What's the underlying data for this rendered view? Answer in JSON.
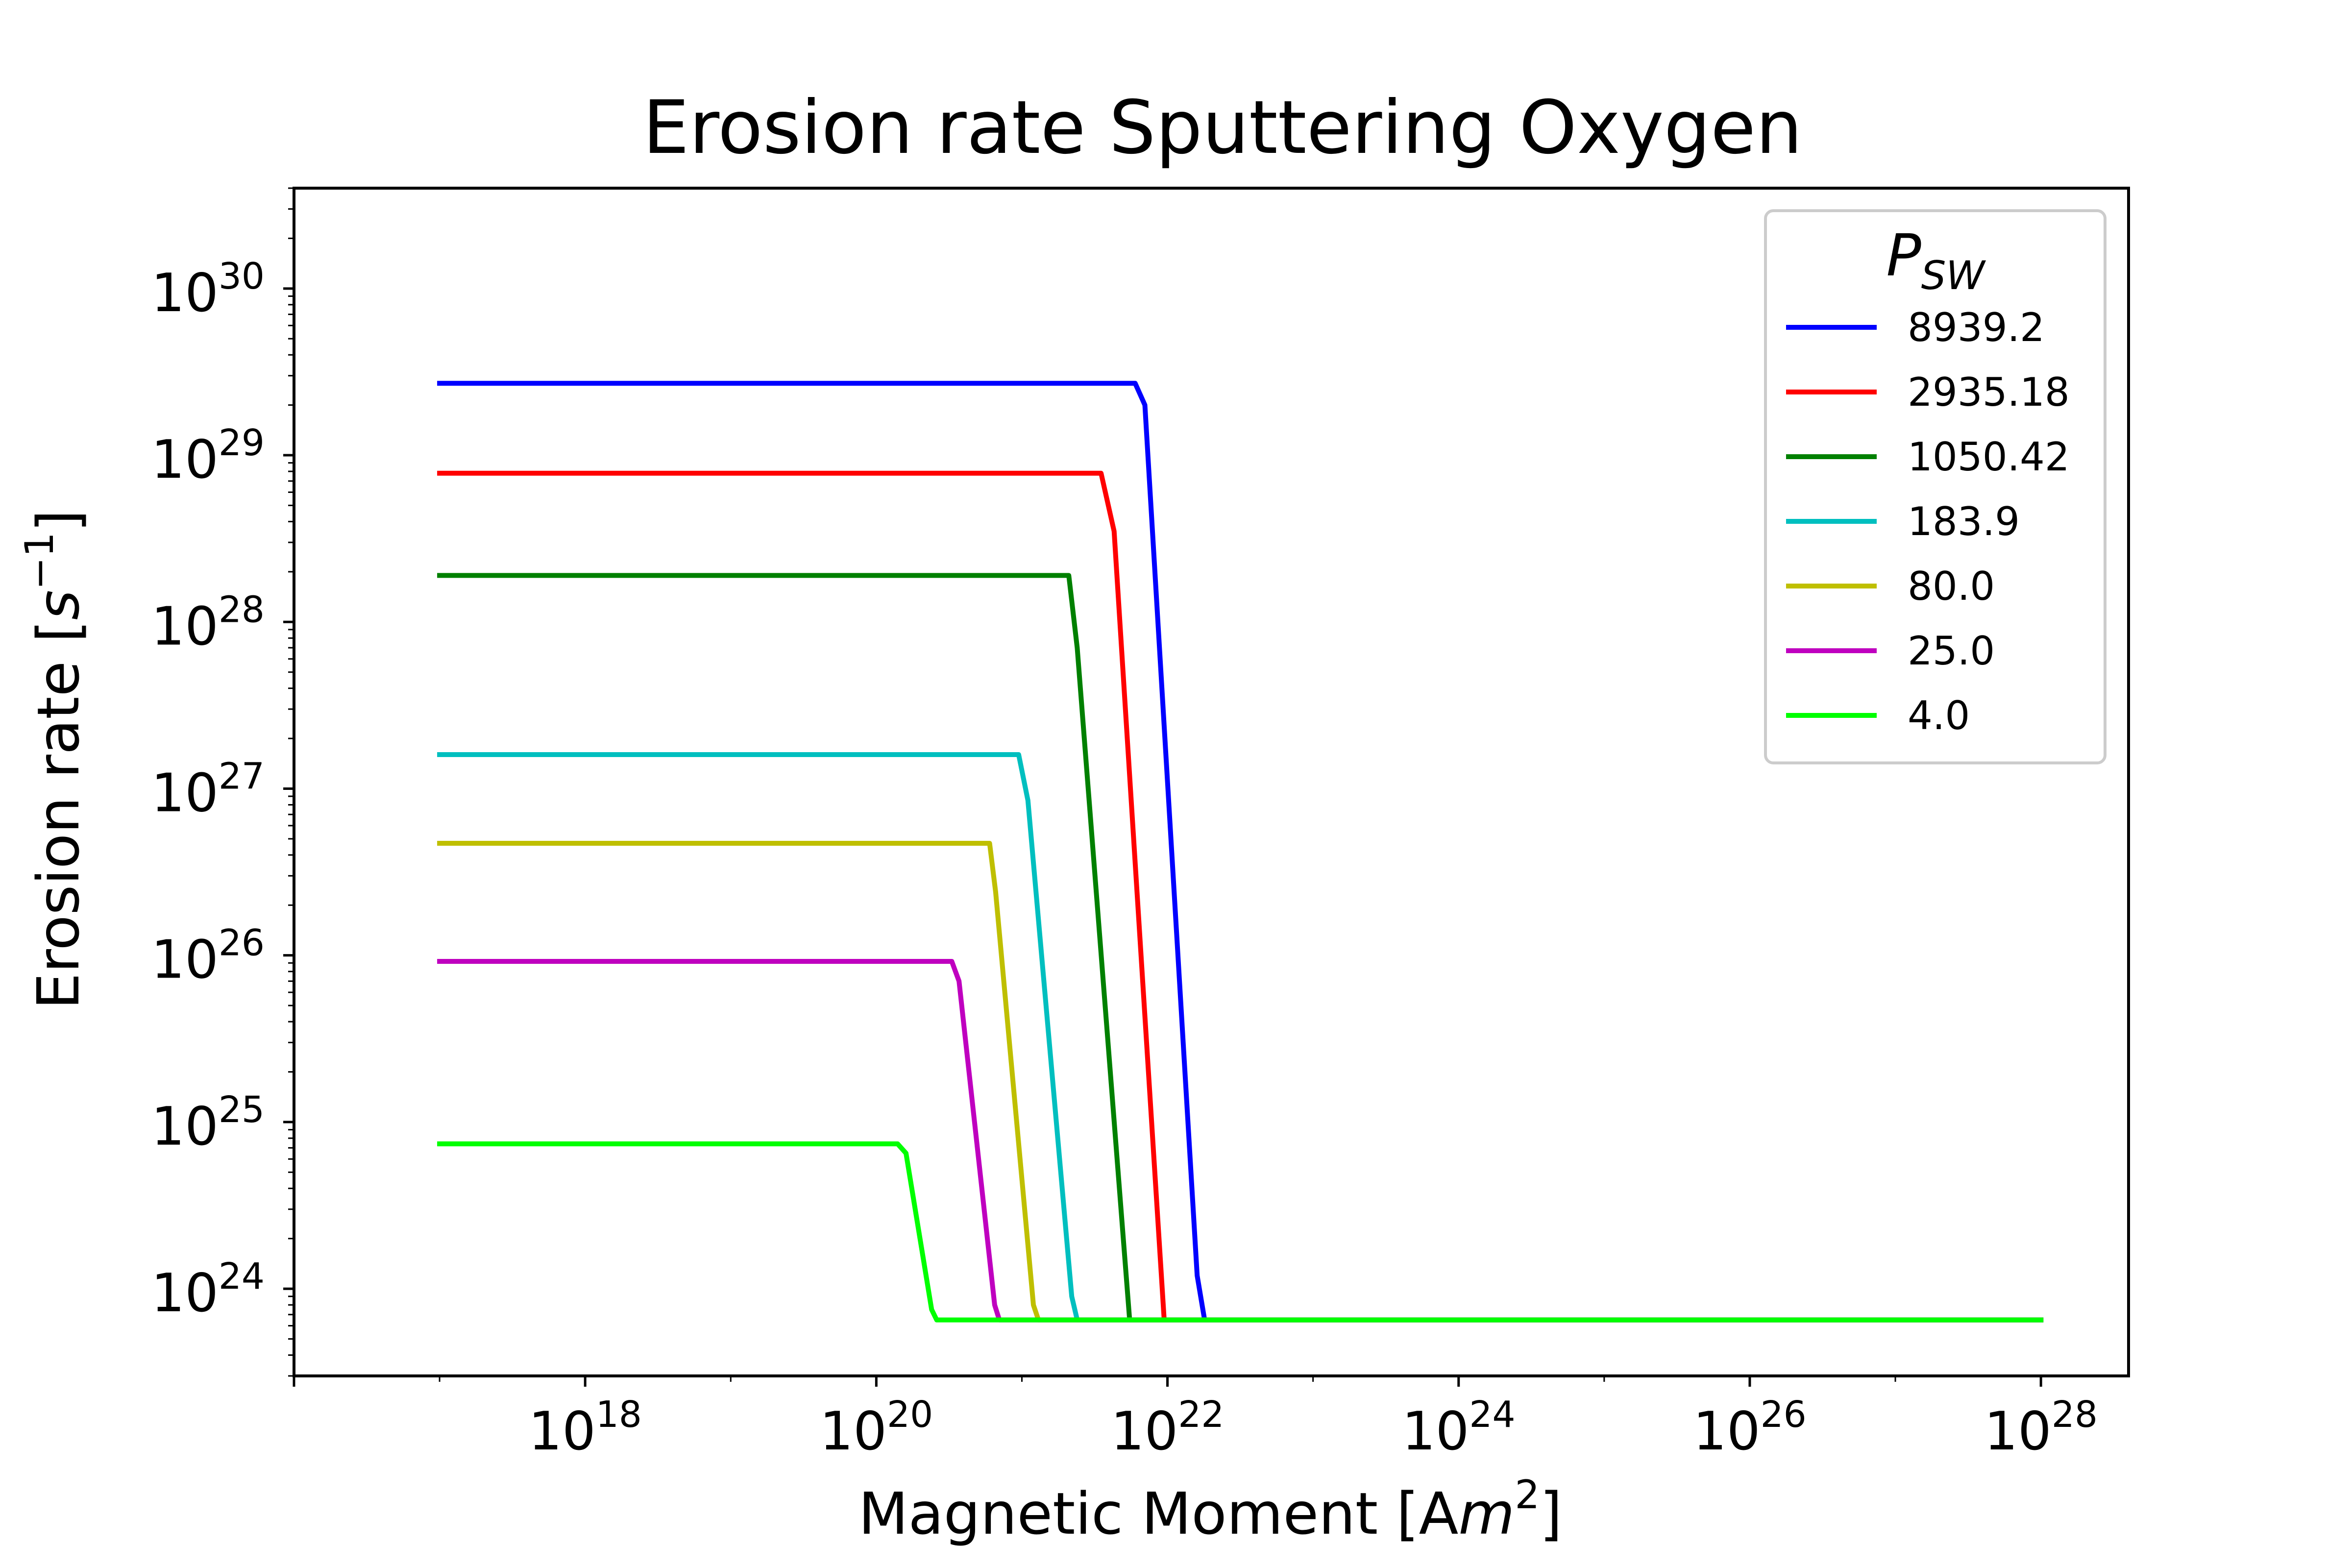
{
  "chart_data": {
    "type": "line",
    "title": "Erosion rate Sputtering Oxygen",
    "xlabel": {
      "prefix": "Magnetic Moment [A",
      "italic": "m",
      "sup": "2",
      "suffix": "]"
    },
    "ylabel": {
      "prefix": "Erosion rate [",
      "italic": "s",
      "sup": "−1",
      "suffix": "]"
    },
    "x_scale": "log",
    "y_scale": "log",
    "xlim": [
      1e+16,
      4e+28
    ],
    "ylim": [
      3e+23,
      4e+30
    ],
    "x_ticks": [
      {
        "base": "10",
        "exp": "18",
        "value": 1e+18
      },
      {
        "base": "10",
        "exp": "20",
        "value": 1e+20
      },
      {
        "base": "10",
        "exp": "22",
        "value": 1e+22
      },
      {
        "base": "10",
        "exp": "24",
        "value": 1e+24
      },
      {
        "base": "10",
        "exp": "26",
        "value": 1e+26
      },
      {
        "base": "10",
        "exp": "28",
        "value": 1e+28
      }
    ],
    "y_ticks": [
      {
        "base": "10",
        "exp": "24",
        "value": 1e+24
      },
      {
        "base": "10",
        "exp": "25",
        "value": 1e+25
      },
      {
        "base": "10",
        "exp": "26",
        "value": 1e+26
      },
      {
        "base": "10",
        "exp": "27",
        "value": 1e+27
      },
      {
        "base": "10",
        "exp": "28",
        "value": 1e+28
      },
      {
        "base": "10",
        "exp": "29",
        "value": 1e+29
      },
      {
        "base": "10",
        "exp": "30",
        "value": 1e+30
      }
    ],
    "grid": false,
    "legend": {
      "title_base": "P",
      "title_sub": "SW",
      "position": "top-right"
    },
    "series": [
      {
        "name": "8939.2",
        "color": "#0000ff",
        "points": [
          [
            1e+17,
            2.7e+29
          ],
          [
            6e+21,
            2.7e+29
          ],
          [
            7e+21,
            2e+29
          ],
          [
            1.6e+22,
            1.2e+24
          ],
          [
            1.8e+22,
            6.5e+23
          ],
          [
            1e+28,
            6.5e+23
          ]
        ]
      },
      {
        "name": "2935.18",
        "color": "#ff0000",
        "points": [
          [
            1e+17,
            7.8e+28
          ],
          [
            3.5e+21,
            7.8e+28
          ],
          [
            4.3e+21,
            3.5e+28
          ],
          [
            9.5e+21,
            6.5e+23
          ],
          [
            1e+28,
            6.5e+23
          ]
        ]
      },
      {
        "name": "1050.42",
        "color": "#008000",
        "points": [
          [
            1e+17,
            1.9e+28
          ],
          [
            2.1e+21,
            1.9e+28
          ],
          [
            2.4e+21,
            7e+27
          ],
          [
            5.5e+21,
            6.5e+23
          ],
          [
            1e+28,
            6.5e+23
          ]
        ]
      },
      {
        "name": "183.9",
        "color": "#00bfbf",
        "points": [
          [
            1e+17,
            1.6e+27
          ],
          [
            9.5e+20,
            1.6e+27
          ],
          [
            1.1e+21,
            8.5e+26
          ],
          [
            2.2e+21,
            9e+23
          ],
          [
            2.4e+21,
            6.5e+23
          ],
          [
            1e+28,
            6.5e+23
          ]
        ]
      },
      {
        "name": "80.0",
        "color": "#bfbf00",
        "points": [
          [
            1e+17,
            4.7e+26
          ],
          [
            6e+20,
            4.7e+26
          ],
          [
            6.6e+20,
            2.4e+26
          ],
          [
            1.2e+21,
            8e+23
          ],
          [
            1.3e+21,
            6.5e+23
          ],
          [
            1e+28,
            6.5e+23
          ]
        ]
      },
      {
        "name": "25.0",
        "color": "#bf00bf",
        "points": [
          [
            1e+17,
            9.2e+25
          ],
          [
            3.3e+20,
            9.2e+25
          ],
          [
            3.7e+20,
            7e+25
          ],
          [
            6.5e+20,
            8e+23
          ],
          [
            7e+20,
            6.5e+23
          ],
          [
            1e+28,
            6.5e+23
          ]
        ]
      },
      {
        "name": "4.0",
        "color": "#00ff00",
        "points": [
          [
            1e+17,
            7.4e+24
          ],
          [
            1.4e+20,
            7.4e+24
          ],
          [
            1.6e+20,
            6.5e+24
          ],
          [
            2.4e+20,
            7.5e+23
          ],
          [
            2.6e+20,
            6.5e+23
          ],
          [
            1e+28,
            6.5e+23
          ]
        ]
      }
    ]
  }
}
